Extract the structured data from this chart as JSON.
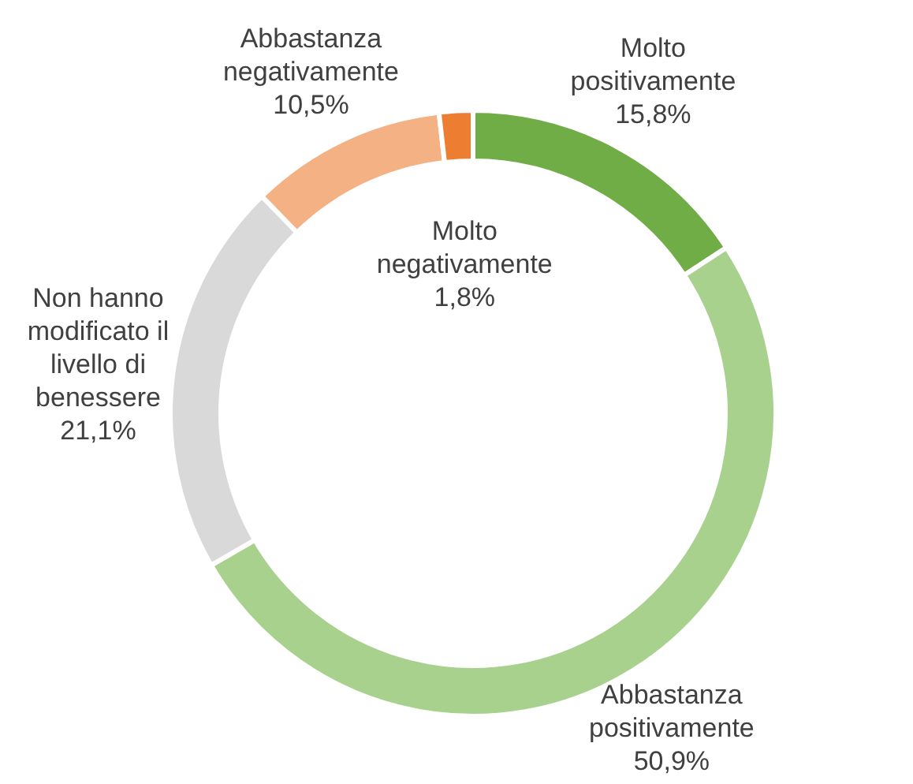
{
  "chart_data": {
    "type": "donut",
    "categories": [
      "Molto positivamente",
      "Abbastanza positivamente",
      "Non hanno modificato il livello di benessere",
      "Abbastanza negativamente",
      "Molto negativamente"
    ],
    "values": [
      15.8,
      50.9,
      21.1,
      10.5,
      1.8
    ],
    "colors": [
      "#70ad47",
      "#a9d18e",
      "#d9d9d9",
      "#f4b183",
      "#ed7d31"
    ],
    "value_labels": [
      "15,8%",
      "50,9%",
      "21,1%",
      "10,5%",
      "1,8%"
    ]
  }
}
